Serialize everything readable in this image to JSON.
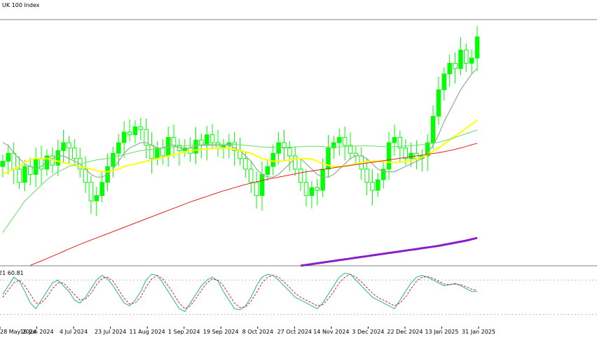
{
  "title": "UK 100 Index",
  "colors": {
    "background": "#ffffff",
    "candle_bull": "#00ff00",
    "candle_bear": "#00ff00",
    "ma_gray": "#8fae8f",
    "ma_yellow": "#ffff00",
    "ma_lightgreen": "#66dd66",
    "ma_red": "#e02020",
    "ma_purple": "#8a1dc8",
    "stoch_main": "#20b2aa",
    "stoch_signal": "#e02020",
    "levels": "#bbbbbb",
    "separator": "#808080"
  },
  "chart_data": [
    {
      "type": "candlestick",
      "title": "UK 100 Index",
      "x_tick_labels": [
        "28 May 2024",
        "16 Jun 2024",
        "4 Jul 2024",
        "23 Jul 2024",
        "11 Aug 2024",
        "1 Sep 2024",
        "19 Sep 2024",
        "8 Oct 2024",
        "27 Oct 2024",
        "14 Nov 2024",
        "3 Dec 2024",
        "22 Dec 2024",
        "13 Jan 2025",
        "31 Jan 2025"
      ],
      "ohlc_close_path": [
        8230,
        8260,
        8200,
        8150,
        8210,
        8180,
        8240,
        8200,
        8250,
        8215,
        8270,
        8300,
        8280,
        8240,
        8200,
        8150,
        8080,
        8100,
        8150,
        8210,
        8260,
        8300,
        8340,
        8330,
        8360,
        8350,
        8290,
        8240,
        8280,
        8250,
        8320,
        8290,
        8270,
        8280,
        8260,
        8310,
        8290,
        8330,
        8300,
        8280,
        8290,
        8300,
        8270,
        8240,
        8200,
        8150,
        8100,
        8180,
        8210,
        8260,
        8300,
        8280,
        8250,
        8200,
        8150,
        8100,
        8130,
        8120,
        8200,
        8280,
        8300,
        8320,
        8290,
        8260,
        8250,
        8200,
        8150,
        8120,
        8160,
        8200,
        8300,
        8320,
        8280,
        8240,
        8260,
        8240,
        8250,
        8300,
        8400,
        8500,
        8560,
        8600,
        8580,
        8650,
        8600,
        8620,
        8700
      ],
      "moving_averages": [
        {
          "color_key": "ma_gray",
          "values": [
            8300,
            8290,
            8260,
            8240,
            8220,
            8210,
            8200,
            8210,
            8230,
            8240,
            8250,
            8250,
            8240,
            8230,
            8220,
            8200,
            8180,
            8170,
            8170,
            8180,
            8200,
            8230,
            8260,
            8280,
            8290,
            8300,
            8300,
            8290,
            8280,
            8280,
            8290,
            8290,
            8280,
            8280,
            8280,
            8290,
            8290,
            8290,
            8290,
            8290,
            8290,
            8290,
            8280,
            8270,
            8250,
            8230,
            8200,
            8180,
            8170,
            8170,
            8180,
            8200,
            8220,
            8240,
            8240,
            8220,
            8200,
            8180,
            8170,
            8170,
            8180,
            8200,
            8220,
            8240,
            8250,
            8250,
            8240,
            8220,
            8200,
            8190,
            8190,
            8190,
            8200,
            8210,
            8220,
            8230,
            8240,
            8260,
            8290,
            8330,
            8380,
            8420,
            8460,
            8500,
            8530,
            8560,
            8580
          ]
        },
        {
          "color_key": "ma_yellow",
          "values": [
            8180,
            8190,
            8200,
            8210,
            8225,
            8235,
            8240,
            8240,
            8240,
            8235,
            8230,
            8225,
            8220,
            8215,
            8210,
            8205,
            8200,
            8195,
            8190,
            8190,
            8195,
            8200,
            8210,
            8215,
            8220,
            8225,
            8230,
            8235,
            8240,
            8245,
            8250,
            8255,
            8260,
            8265,
            8270,
            8272,
            8274,
            8276,
            8278,
            8280,
            8280,
            8278,
            8275,
            8270,
            8265,
            8260,
            8250,
            8240,
            8235,
            8230,
            8230,
            8232,
            8235,
            8238,
            8240,
            8240,
            8238,
            8230,
            8220,
            8215,
            8210,
            8210,
            8212,
            8215,
            8220,
            8225,
            8228,
            8230,
            8230,
            8228,
            8226,
            8225,
            8226,
            8228,
            8232,
            8238,
            8245,
            8255,
            8268,
            8280,
            8295,
            8310,
            8325,
            8340,
            8355,
            8370,
            8385
          ]
        },
        {
          "color_key": "ma_lightgreen",
          "values": [
            7960,
            7990,
            8020,
            8050,
            8080,
            8100,
            8120,
            8140,
            8160,
            8175,
            8190,
            8200,
            8210,
            8215,
            8220,
            8225,
            8230,
            8235,
            8238,
            8240,
            8245,
            8250,
            8255,
            8260,
            8265,
            8270,
            8272,
            8275,
            8278,
            8280,
            8282,
            8284,
            8286,
            8288,
            8290,
            8291,
            8292,
            8293,
            8294,
            8294,
            8294,
            8294,
            8293,
            8292,
            8290,
            8288,
            8286,
            8284,
            8283,
            8282,
            8282,
            8282,
            8283,
            8284,
            8285,
            8286,
            8286,
            8286,
            8285,
            8284,
            8284,
            8284,
            8285,
            8286,
            8287,
            8288,
            8288,
            8287,
            8286,
            8285,
            8285,
            8285,
            8286,
            8287,
            8288,
            8290,
            8292,
            8295,
            8298,
            8302,
            8307,
            8313,
            8320,
            8327,
            8334,
            8341,
            8348
          ]
        },
        {
          "color_key": "ma_red",
          "values": [
            7800,
            7805,
            7812,
            7820,
            7828,
            7836,
            7845,
            7853,
            7862,
            7871,
            7880,
            7889,
            7898,
            7907,
            7916,
            7924,
            7932,
            7940,
            7948,
            7956,
            7964,
            7972,
            7980,
            7988,
            7996,
            8004,
            8012,
            8020,
            8028,
            8036,
            8044,
            8052,
            8060,
            8068,
            8076,
            8083,
            8090,
            8097,
            8104,
            8111,
            8118,
            8124,
            8130,
            8136,
            8142,
            8147,
            8152,
            8157,
            8162,
            8166,
            8170,
            8174,
            8178,
            8182,
            8186,
            8190,
            8193,
            8196,
            8199,
            8202,
            8205,
            8208,
            8211,
            8214,
            8217,
            8220,
            8223,
            8226,
            8229,
            8232,
            8235,
            8238,
            8241,
            8244,
            8247,
            8250,
            8253,
            8256,
            8259,
            8262,
            8266,
            8270,
            8275,
            8280,
            8286,
            8292,
            8298
          ]
        },
        {
          "color_key": "ma_purple",
          "values": [
            7700,
            7702,
            7704,
            7706,
            7708,
            7710,
            7712,
            7714,
            7716,
            7718,
            7720,
            7722,
            7724,
            7726,
            7728,
            7730,
            7732,
            7734,
            7736,
            7738,
            7740,
            7742,
            7744,
            7746,
            7748,
            7750,
            7752,
            7754,
            7757,
            7760,
            7763,
            7766,
            7769,
            7772,
            7775,
            7778,
            7781,
            7784,
            7787,
            7790,
            7793,
            7796,
            7799,
            7802,
            7805,
            7808,
            7811,
            7814,
            7817,
            7820,
            7823,
            7826,
            7829,
            7832,
            7835,
            7838,
            7841,
            7844,
            7847,
            7850,
            7853,
            7856,
            7859,
            7862,
            7865,
            7868,
            7871,
            7874,
            7877,
            7880,
            7883,
            7886,
            7889,
            7892,
            7895,
            7898,
            7901,
            7904,
            7907,
            7910,
            7914,
            7918,
            7922,
            7926,
            7930,
            7935,
            7940
          ]
        }
      ]
    },
    {
      "type": "line",
      "subtitle": "21 60.81",
      "ylim": [
        0,
        100
      ],
      "levels": [
        20,
        80
      ],
      "series": [
        {
          "color_key": "stoch_main",
          "values": [
            55,
            70,
            85,
            78,
            60,
            40,
            30,
            45,
            60,
            75,
            80,
            70,
            60,
            45,
            40,
            50,
            65,
            80,
            88,
            82,
            70,
            55,
            40,
            35,
            45,
            60,
            80,
            90,
            88,
            75,
            60,
            45,
            30,
            25,
            40,
            55,
            70,
            80,
            85,
            78,
            60,
            45,
            30,
            28,
            35,
            50,
            70,
            85,
            90,
            88,
            80,
            70,
            60,
            50,
            45,
            40,
            35,
            30,
            40,
            55,
            70,
            85,
            92,
            90,
            80,
            70,
            60,
            50,
            45,
            40,
            35,
            30,
            45,
            60,
            75,
            85,
            88,
            85,
            80,
            75,
            70,
            72,
            74,
            70,
            65,
            60,
            60
          ]
        },
        {
          "color_key": "stoch_signal",
          "values": [
            50,
            62,
            75,
            80,
            70,
            55,
            40,
            40,
            50,
            65,
            75,
            75,
            65,
            55,
            45,
            47,
            57,
            72,
            83,
            85,
            78,
            63,
            48,
            38,
            40,
            50,
            68,
            82,
            88,
            82,
            70,
            55,
            40,
            30,
            35,
            48,
            62,
            75,
            82,
            80,
            70,
            55,
            40,
            32,
            33,
            43,
            58,
            75,
            85,
            88,
            85,
            77,
            67,
            57,
            50,
            45,
            40,
            35,
            37,
            47,
            60,
            75,
            85,
            90,
            85,
            77,
            67,
            57,
            50,
            45,
            40,
            35,
            40,
            50,
            65,
            78,
            85,
            86,
            83,
            78,
            73,
            72,
            73,
            72,
            68,
            64,
            62
          ]
        }
      ]
    }
  ]
}
